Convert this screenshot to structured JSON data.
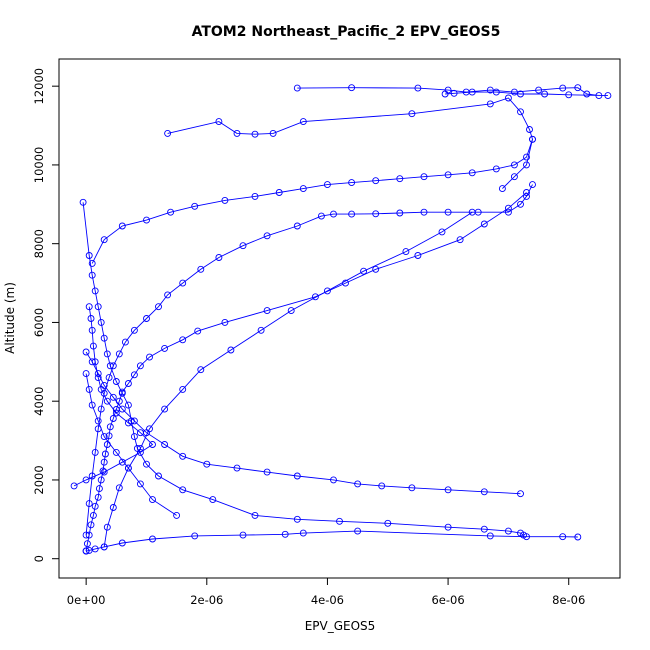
{
  "chart_data": {
    "type": "line",
    "title": "ATOM2 Northeast_Pacific_2 EPV_GEOS5",
    "xlabel": "EPV_GEOS5",
    "ylabel": "Altitude (m)",
    "xlim": [
      -4.5e-07,
      8.85e-06
    ],
    "ylim": [
      -490,
      12690
    ],
    "x_ticks": [
      0,
      2e-06,
      4e-06,
      6e-06,
      8e-06
    ],
    "x_tick_labels": [
      "0e+00",
      "2e-06",
      "4e-06",
      "6e-06",
      "8e-06"
    ],
    "y_ticks": [
      0,
      2000,
      4000,
      6000,
      8000,
      10000,
      12000
    ],
    "y_tick_labels": [
      "0",
      "2000",
      "4000",
      "6000",
      "8000",
      "10000",
      "12000"
    ],
    "grid": false,
    "marker": "open-circle",
    "color": "#0000ff",
    "series": [
      {
        "x": [
          0.0,
          2e-08,
          5e-08,
          8e-08,
          1.2e-07,
          1.5e-07,
          2e-07,
          2.2e-07,
          2.5e-07,
          2.8e-07,
          3e-07,
          3.2e-07,
          3.5e-07,
          3.8e-07,
          4e-07,
          4.5e-07,
          5e-07,
          5.5e-07,
          6e-07,
          7e-07,
          8e-07,
          9e-07,
          1.05e-06,
          1.3e-06,
          1.6e-06,
          1.85e-06,
          2.3e-06,
          3e-06,
          3.8e-06,
          4.3e-06,
          4.8e-06,
          5.5e-06,
          6.2e-06,
          6.6e-06,
          7e-06,
          7.3e-06
        ],
        "y": [
          200,
          380,
          600,
          860,
          1100,
          1330,
          1560,
          1780,
          2000,
          2230,
          2450,
          2660,
          2900,
          3120,
          3350,
          3560,
          3790,
          4000,
          4230,
          4450,
          4670,
          4900,
          5120,
          5340,
          5560,
          5780,
          6000,
          6300,
          6650,
          7000,
          7350,
          7700,
          8100,
          8500,
          8900,
          9300
        ]
      },
      {
        "x": [
          7.4e-06,
          7.3e-06,
          7.2e-06,
          7e-06,
          6.5e-06,
          6e-06,
          5.6e-06,
          5.2e-06,
          4.8e-06,
          4.4e-06,
          4.1e-06,
          3.9e-06,
          3.5e-06,
          3e-06,
          2.6e-06,
          2.2e-06,
          1.9e-06,
          1.6e-06,
          1.35e-06,
          1.2e-06,
          1e-06,
          8e-07,
          6.5e-07,
          5.5e-07,
          4.5e-07,
          3.8e-07,
          3e-07,
          2.5e-07,
          2e-07,
          1.5e-07,
          1e-07,
          5e-08,
          0.0
        ],
        "y": [
          9500,
          9200,
          9000,
          8800,
          8800,
          8800,
          8800,
          8780,
          8760,
          8750,
          8750,
          8700,
          8450,
          8200,
          7950,
          7650,
          7350,
          7000,
          6700,
          6400,
          6100,
          5800,
          5500,
          5200,
          4900,
          4600,
          4200,
          3800,
          3300,
          2700,
          2100,
          1400,
          600
        ]
      },
      {
        "x": [
          -5e-08,
          5e-08,
          1e-07,
          1.5e-07,
          2e-07,
          2.5e-07,
          3e-07,
          3.5e-07,
          4e-07,
          5e-07,
          6e-07,
          7e-07,
          7.5e-07,
          8e-07,
          8.5e-07,
          1e-06,
          1.2e-06,
          1.6e-06,
          2.1e-06,
          2.8e-06,
          3.5e-06,
          4.2e-06,
          5e-06,
          6e-06,
          6.6e-06,
          7e-06,
          7.2e-06,
          7.25e-06
        ],
        "y": [
          9050,
          7700,
          7200,
          6800,
          6400,
          6000,
          5600,
          5200,
          4900,
          4500,
          4200,
          3900,
          3500,
          3100,
          2800,
          2400,
          2100,
          1750,
          1500,
          1100,
          1000,
          950,
          900,
          800,
          750,
          700,
          650,
          600
        ]
      },
      {
        "x": [
          1e-07,
          3e-07,
          6e-07,
          1e-06,
          1.4e-06,
          1.8e-06,
          2.3e-06,
          2.8e-06,
          3.2e-06,
          3.6e-06,
          4e-06,
          4.4e-06,
          4.8e-06,
          5.2e-06,
          5.6e-06,
          6e-06,
          6.4e-06,
          6.8e-06,
          7.1e-06,
          7.3e-06,
          7.4e-06
        ],
        "y": [
          7500,
          8100,
          8450,
          8600,
          8800,
          8950,
          9100,
          9200,
          9300,
          9400,
          9500,
          9550,
          9600,
          9650,
          9700,
          9750,
          9800,
          9900,
          10000,
          10200,
          10650
        ]
      },
      {
        "x": [
          1.35e-06,
          2.2e-06,
          2.5e-06,
          2.8e-06,
          3.1e-06,
          3.6e-06,
          5.4e-06,
          6.7e-06,
          7e-06,
          7.2e-06,
          7.35e-06,
          7.4e-06,
          7.3e-06,
          7.1e-06,
          6.9e-06
        ],
        "y": [
          10800,
          11100,
          10800,
          10780,
          10800,
          11100,
          11300,
          11550,
          11700,
          11350,
          10900,
          10650,
          10000,
          9700,
          9400
        ]
      },
      {
        "x": [
          3.5e-06,
          4.4e-06,
          5.5e-06,
          6e-06,
          6.3e-06,
          6.7e-06,
          7.1e-06,
          7.5e-06,
          7.9e-06,
          8.15e-06,
          8.3e-06,
          8.5e-06,
          8.65e-06,
          8e-06,
          7.6e-06,
          7.2e-06,
          6.8e-06,
          6.4e-06,
          6.1e-06,
          5.95e-06
        ],
        "y": [
          11950,
          11960,
          11950,
          11900,
          11850,
          11900,
          11850,
          11900,
          11950,
          11960,
          11800,
          11760,
          11760,
          11780,
          11800,
          11800,
          11850,
          11850,
          11820,
          11800
        ]
      },
      {
        "x": [
          0.0,
          5e-08,
          1.5e-07,
          3e-07,
          6e-07,
          1.1e-06,
          1.8e-06,
          2.6e-06,
          3.3e-06,
          3.6e-06,
          4.5e-06,
          6.7e-06,
          7.3e-06,
          7.9e-06,
          8.15e-06
        ],
        "y": [
          190,
          210,
          250,
          300,
          400,
          500,
          580,
          600,
          620,
          650,
          700,
          580,
          560,
          560,
          550
        ]
      },
      {
        "x": [
          -2e-07,
          0.0,
          3e-07,
          6e-07,
          9e-07,
          1.1e-06,
          9e-07,
          7e-07,
          5e-07,
          3.5e-07,
          2.5e-07,
          2e-07,
          1.5e-07,
          1.2e-07,
          1e-07,
          8e-08,
          5e-08
        ],
        "y": [
          1850,
          2000,
          2200,
          2450,
          2700,
          2900,
          3200,
          3450,
          3700,
          4000,
          4300,
          4600,
          5000,
          5400,
          5800,
          6100,
          6400
        ]
      },
      {
        "x": [
          0.0,
          1e-07,
          2e-07,
          3e-07,
          4.5e-07,
          6e-07,
          8e-07,
          1e-06,
          1.3e-06,
          1.6e-06,
          2e-06,
          2.5e-06,
          3e-06,
          3.5e-06,
          4.1e-06,
          4.5e-06,
          4.9e-06,
          5.4e-06,
          6e-06,
          6.6e-06,
          7.2e-06
        ],
        "y": [
          5250,
          5000,
          4700,
          4400,
          4100,
          3800,
          3500,
          3200,
          2900,
          2600,
          2400,
          2300,
          2200,
          2100,
          2000,
          1900,
          1850,
          1800,
          1750,
          1700,
          1650
        ]
      },
      {
        "x": [
          3e-07,
          3.5e-07,
          4.5e-07,
          5.5e-07,
          7e-07,
          9e-07,
          1.05e-06,
          1.3e-06,
          1.6e-06,
          1.9e-06,
          2.4e-06,
          2.9e-06,
          3.4e-06,
          4e-06,
          4.6e-06,
          5.3e-06,
          5.9e-06,
          6.4e-06
        ],
        "y": [
          300,
          800,
          1300,
          1800,
          2300,
          2800,
          3300,
          3800,
          4300,
          4800,
          5300,
          5800,
          6300,
          6800,
          7300,
          7800,
          8300,
          8800
        ]
      },
      {
        "x": [
          1.5e-06,
          1.1e-06,
          9e-07,
          7e-07,
          5e-07,
          3e-07,
          2e-07,
          1e-07,
          5e-08,
          0.0
        ],
        "y": [
          1100,
          1500,
          1900,
          2300,
          2700,
          3100,
          3500,
          3900,
          4300,
          4700
        ]
      }
    ]
  }
}
